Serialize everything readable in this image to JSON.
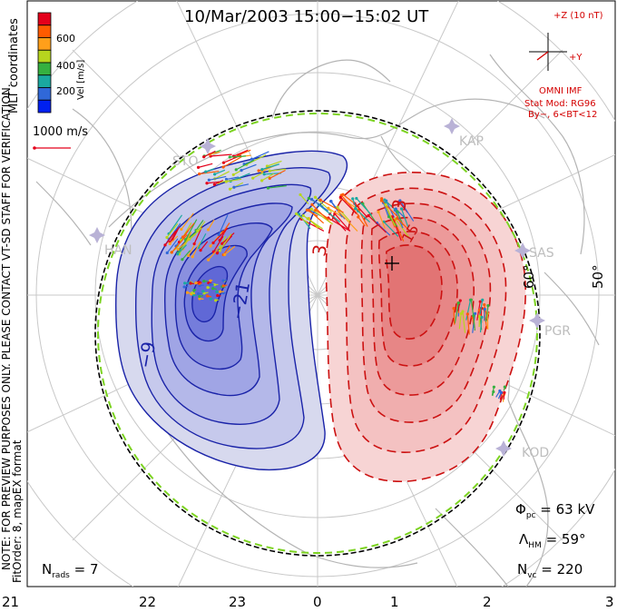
{
  "header": {
    "title": "10/Mar/2003 15:00−15:02 UT"
  },
  "side_notes": {
    "coords": "MLT coordinates",
    "warning": "NOTE: FOR PREVIEW PURPOSES ONLY. PLEASE CONTACT VT-SD STAFF FOR VERIFICATION.",
    "fit": "FitOrder: 8, mapEX format"
  },
  "velocity_scale": {
    "label": "Vel [m/s]",
    "ticks": [
      "600",
      "400",
      "200"
    ],
    "colors": [
      "#e4001b",
      "#ff5b00",
      "#ff9f1a",
      "#b7d51e",
      "#35b040",
      "#1aa8a0",
      "#3068d8",
      "#0020f0"
    ],
    "reference_label": "1000 m/s"
  },
  "imf": {
    "label_z": "+Z (10 nT)",
    "label_y": "+Y",
    "source": "OMNI IMF",
    "model": "Stat Mod: RG96",
    "bin": "By−, 6<BT<12"
  },
  "stations": [
    "STO",
    "KAP",
    "HAN",
    "SAS",
    "PGR",
    "KOD"
  ],
  "latitude_labels": [
    "60°",
    "50°"
  ],
  "contours": {
    "negative_labels": [
      "−9",
      "−21"
    ],
    "positive_labels": [
      "3",
      "3",
      "15"
    ]
  },
  "stats": {
    "phi_pc": "63 kV",
    "lambda_hm": "59°",
    "n_vc": "220",
    "n_rads": "7"
  },
  "mlt_axis": [
    "21",
    "22",
    "23",
    "0",
    "1",
    "2",
    "3"
  ],
  "colors": {
    "negative": "#1a23a8",
    "positive": "#cc1111",
    "boundary": "#7cd321"
  }
}
